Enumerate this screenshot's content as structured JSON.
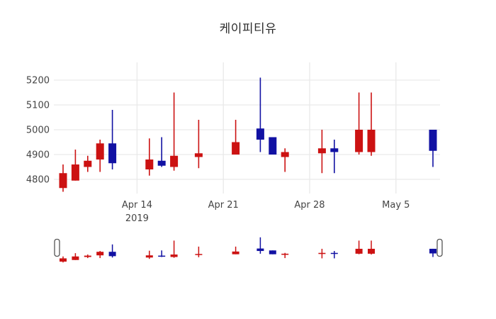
{
  "title": "케이피티유",
  "colors": {
    "up": "#cc1212",
    "down": "#1111a3",
    "grid": "#e9e9e9",
    "axis_text": "#444444",
    "title_text": "#2b2b2b",
    "handle_fill": "#ffffff",
    "handle_border": "#555555",
    "background": "#ffffff"
  },
  "chart_data": {
    "type": "candlestick",
    "title": "케이피티유",
    "xlabel": "",
    "ylabel": "",
    "grid": true,
    "ylim": [
      4740,
      5220
    ],
    "y_ticks": [
      4800,
      4900,
      5000,
      5100,
      5200
    ],
    "x_ticks": [
      {
        "label": "Apr 14",
        "sublabel": "2019",
        "day": 6
      },
      {
        "label": "Apr 21",
        "sublabel": "",
        "day": 13
      },
      {
        "label": "Apr 28",
        "sublabel": "",
        "day": 20
      },
      {
        "label": "May 5",
        "sublabel": "",
        "day": 27
      }
    ],
    "rangeslider": {
      "present": true,
      "handle_count": 2
    },
    "candles": [
      {
        "date": "2019-04-08",
        "day": 0,
        "open": 4765,
        "high": 4860,
        "low": 4750,
        "close": 4825
      },
      {
        "date": "2019-04-09",
        "day": 1,
        "open": 4795,
        "high": 4920,
        "low": 4795,
        "close": 4860
      },
      {
        "date": "2019-04-10",
        "day": 2,
        "open": 4850,
        "high": 4895,
        "low": 4830,
        "close": 4875
      },
      {
        "date": "2019-04-11",
        "day": 3,
        "open": 4880,
        "high": 4960,
        "low": 4830,
        "close": 4945
      },
      {
        "date": "2019-04-12",
        "day": 4,
        "open": 4945,
        "high": 5080,
        "low": 4840,
        "close": 4865
      },
      {
        "date": "2019-04-15",
        "day": 7,
        "open": 4840,
        "high": 4965,
        "low": 4815,
        "close": 4880
      },
      {
        "date": "2019-04-16",
        "day": 8,
        "open": 4875,
        "high": 4970,
        "low": 4850,
        "close": 4855
      },
      {
        "date": "2019-04-17",
        "day": 9,
        "open": 4850,
        "high": 5150,
        "low": 4835,
        "close": 4895
      },
      {
        "date": "2019-04-19",
        "day": 11,
        "open": 4890,
        "high": 5040,
        "low": 4845,
        "close": 4905
      },
      {
        "date": "2019-04-22",
        "day": 14,
        "open": 4900,
        "high": 5040,
        "low": 4900,
        "close": 4950
      },
      {
        "date": "2019-04-24",
        "day": 16,
        "open": 5005,
        "high": 5210,
        "low": 4910,
        "close": 4960
      },
      {
        "date": "2019-04-25",
        "day": 17,
        "open": 4970,
        "high": 4970,
        "low": 4900,
        "close": 4900
      },
      {
        "date": "2019-04-26",
        "day": 18,
        "open": 4890,
        "high": 4925,
        "low": 4830,
        "close": 4910
      },
      {
        "date": "2019-04-29",
        "day": 21,
        "open": 4905,
        "high": 5000,
        "low": 4825,
        "close": 4925
      },
      {
        "date": "2019-04-30",
        "day": 22,
        "open": 4925,
        "high": 4960,
        "low": 4825,
        "close": 4910
      },
      {
        "date": "2019-05-02",
        "day": 24,
        "open": 4910,
        "high": 5150,
        "low": 4900,
        "close": 5000
      },
      {
        "date": "2019-05-03",
        "day": 25,
        "open": 4910,
        "high": 5150,
        "low": 4895,
        "close": 5000
      },
      {
        "date": "2019-05-08",
        "day": 30,
        "open": 5000,
        "high": 5000,
        "low": 4850,
        "close": 4915
      }
    ]
  }
}
